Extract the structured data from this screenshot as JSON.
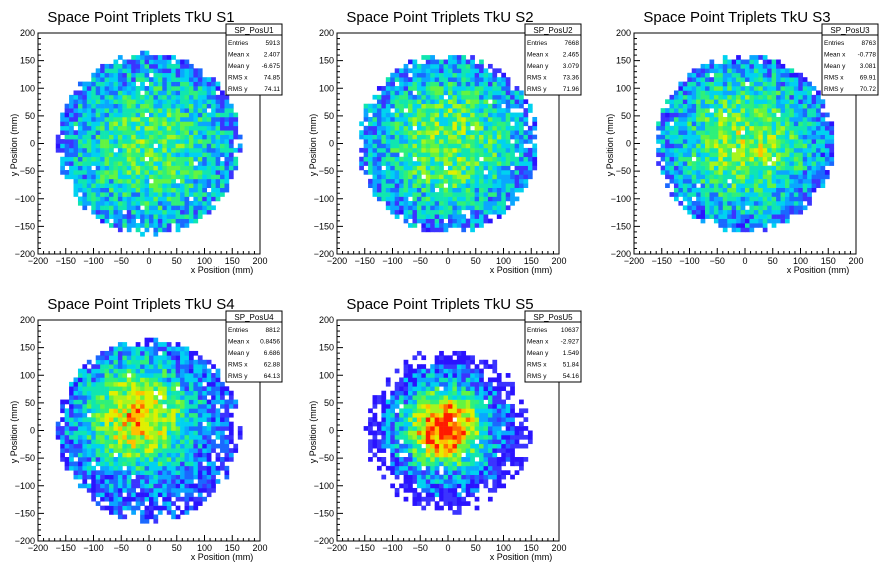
{
  "chart_data": [
    {
      "type": "heatmap",
      "title": "Space Point Triplets TkU S1",
      "xlabel": "x Position (mm)",
      "ylabel": "y Position (mm)",
      "xlim": [
        -200,
        200
      ],
      "ylim": [
        -200,
        200
      ],
      "x_ticks": [
        "−200",
        "−150",
        "−100",
        "−50",
        "0",
        "50",
        "100",
        "150",
        "200"
      ],
      "y_ticks": [
        "−200",
        "−150",
        "−100",
        "−50",
        "0",
        "50",
        "100",
        "150",
        "200"
      ],
      "stats": {
        "name": "SP_PosU1",
        "rows": [
          {
            "label": "Entries",
            "value": "5913"
          },
          {
            "label": "Mean x",
            "value": "2.407"
          },
          {
            "label": "Mean y",
            "value": "-6.675"
          },
          {
            "label": "RMS x",
            "value": "74.85"
          },
          {
            "label": "RMS y",
            "value": "74.11"
          }
        ]
      },
      "distribution": {
        "radius": 165,
        "halo": 0,
        "center_x": 2.4,
        "center_y": -6.7,
        "sigma": 115,
        "peak": 0.45,
        "seed": 11
      }
    },
    {
      "type": "heatmap",
      "title": "Space Point Triplets TkU S2",
      "xlabel": "x Position (mm)",
      "ylabel": "y Position (mm)",
      "xlim": [
        -200,
        200
      ],
      "ylim": [
        -200,
        200
      ],
      "x_ticks": [
        "−200",
        "−150",
        "−100",
        "−50",
        "0",
        "50",
        "100",
        "150",
        "200"
      ],
      "y_ticks": [
        "−200",
        "−150",
        "−100",
        "−50",
        "0",
        "50",
        "100",
        "150",
        "200"
      ],
      "stats": {
        "name": "SP_PosU2",
        "rows": [
          {
            "label": "Entries",
            "value": "7668"
          },
          {
            "label": "Mean x",
            "value": "2.465"
          },
          {
            "label": "Mean y",
            "value": "3.079"
          },
          {
            "label": "RMS x",
            "value": "73.36"
          },
          {
            "label": "RMS y",
            "value": "71.96"
          }
        ]
      },
      "distribution": {
        "radius": 163,
        "halo": 0,
        "center_x": 2.5,
        "center_y": 3.1,
        "sigma": 105,
        "peak": 0.5,
        "seed": 23
      }
    },
    {
      "type": "heatmap",
      "title": "Space Point Triplets TkU S3",
      "xlabel": "x Position (mm)",
      "ylabel": "y Position (mm)",
      "xlim": [
        -200,
        200
      ],
      "ylim": [
        -200,
        200
      ],
      "x_ticks": [
        "−200",
        "−150",
        "−100",
        "−50",
        "0",
        "50",
        "100",
        "150",
        "200"
      ],
      "y_ticks": [
        "−200",
        "−150",
        "−100",
        "−50",
        "0",
        "50",
        "100",
        "150",
        "200"
      ],
      "stats": {
        "name": "SP_PosU3",
        "rows": [
          {
            "label": "Entries",
            "value": "8763"
          },
          {
            "label": "Mean x",
            "value": "-0.778"
          },
          {
            "label": "Mean y",
            "value": "3.081"
          },
          {
            "label": "RMS x",
            "value": "69.91"
          },
          {
            "label": "RMS y",
            "value": "70.72"
          }
        ]
      },
      "distribution": {
        "radius": 162,
        "halo": 0,
        "center_x": -0.8,
        "center_y": 3.1,
        "sigma": 95,
        "peak": 0.55,
        "seed": 37
      }
    },
    {
      "type": "heatmap",
      "title": "Space Point Triplets TkU S4",
      "xlabel": "x Position (mm)",
      "ylabel": "y Position (mm)",
      "xlim": [
        -200,
        200
      ],
      "ylim": [
        -200,
        200
      ],
      "x_ticks": [
        "−200",
        "−150",
        "−100",
        "−50",
        "0",
        "50",
        "100",
        "150",
        "200"
      ],
      "y_ticks": [
        "−200",
        "−150",
        "−100",
        "−50",
        "0",
        "50",
        "100",
        "150",
        "200"
      ],
      "stats": {
        "name": "SP_PosU4",
        "rows": [
          {
            "label": "Entries",
            "value": "8812"
          },
          {
            "label": "Mean x",
            "value": "0.8456"
          },
          {
            "label": "Mean y",
            "value": "6.686"
          },
          {
            "label": "RMS x",
            "value": "62.88"
          },
          {
            "label": "RMS y",
            "value": "64.13"
          }
        ]
      },
      "distribution": {
        "radius": 165,
        "halo": 0,
        "center_x": -20,
        "center_y": 25,
        "sigma": 72,
        "peak": 0.7,
        "seed": 51
      }
    },
    {
      "type": "heatmap",
      "title": "Space Point Triplets TkU S5",
      "xlabel": "x Position (mm)",
      "ylabel": "y Position (mm)",
      "xlim": [
        -200,
        200
      ],
      "ylim": [
        -200,
        200
      ],
      "x_ticks": [
        "−200",
        "−150",
        "−100",
        "−50",
        "0",
        "50",
        "100",
        "150",
        "200"
      ],
      "y_ticks": [
        "−200",
        "−150",
        "−100",
        "−50",
        "0",
        "50",
        "100",
        "150",
        "200"
      ],
      "stats": {
        "name": "SP_PosU5",
        "rows": [
          {
            "label": "Entries",
            "value": "10637"
          },
          {
            "label": "Mean x",
            "value": "-2.927"
          },
          {
            "label": "Mean y",
            "value": "1.549"
          },
          {
            "label": "RMS x",
            "value": "51.84"
          },
          {
            "label": "RMS y",
            "value": "54.16"
          }
        ]
      },
      "distribution": {
        "radius": 120,
        "halo": 150,
        "center_x": -5,
        "center_y": 5,
        "sigma": 50,
        "peak": 0.95,
        "seed": 67
      }
    }
  ],
  "colors": {
    "palette": [
      "#2a13ff",
      "#3b34ff",
      "#1a68ff",
      "#0aa6ff",
      "#00d2f0",
      "#10e6b0",
      "#2ff07a",
      "#63f442",
      "#a6f51e",
      "#e0f000",
      "#ffc000",
      "#ff6a00",
      "#ff1a00"
    ],
    "frame": "#000000",
    "background": "#ffffff"
  }
}
